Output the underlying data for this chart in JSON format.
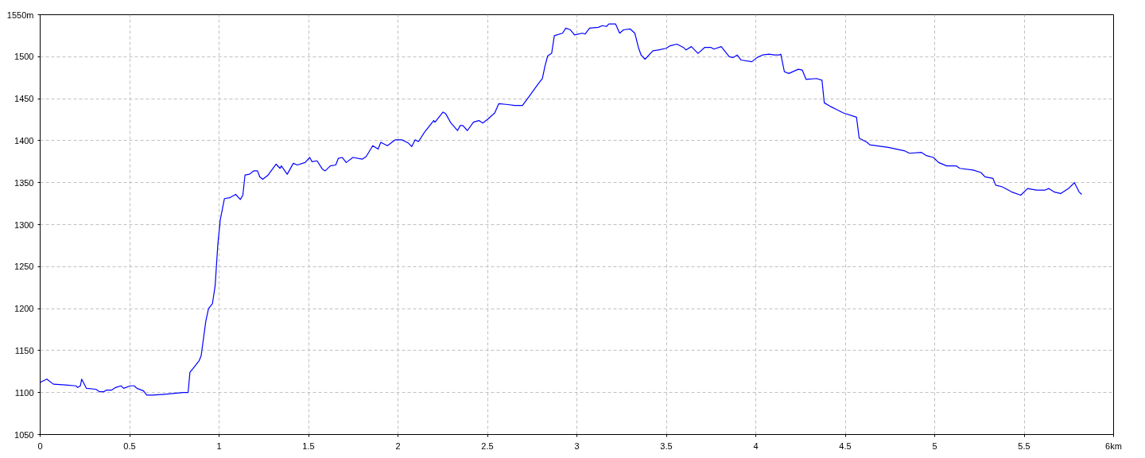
{
  "chart_data": {
    "type": "line",
    "x": [
      0.0,
      0.037,
      0.074,
      0.141,
      0.2,
      0.21,
      0.225,
      0.232,
      0.259,
      0.311,
      0.333,
      0.356,
      0.37,
      0.4,
      0.422,
      0.452,
      0.467,
      0.504,
      0.526,
      0.541,
      0.578,
      0.596,
      0.63,
      0.696,
      0.8,
      0.827,
      0.837,
      0.889,
      0.9,
      0.926,
      0.941,
      0.963,
      0.978,
      0.993,
      1.007,
      1.03,
      1.059,
      1.093,
      1.119,
      1.133,
      1.145,
      1.17,
      1.193,
      1.215,
      1.227,
      1.244,
      1.274,
      1.319,
      1.341,
      1.348,
      1.381,
      1.415,
      1.437,
      1.481,
      1.507,
      1.519,
      1.548,
      1.578,
      1.593,
      1.622,
      1.652,
      1.667,
      1.689,
      1.711,
      1.748,
      1.8,
      1.822,
      1.859,
      1.889,
      1.904,
      1.941,
      1.985,
      2.022,
      2.059,
      2.077,
      2.096,
      2.115,
      2.148,
      2.185,
      2.2,
      2.207,
      2.252,
      2.267,
      2.296,
      2.333,
      2.348,
      2.363,
      2.388,
      2.422,
      2.452,
      2.474,
      2.504,
      2.541,
      2.563,
      2.615,
      2.652,
      2.696,
      2.741,
      2.785,
      2.807,
      2.822,
      2.837,
      2.859,
      2.874,
      2.92,
      2.938,
      2.964,
      2.987,
      3.031,
      3.046,
      3.071,
      3.12,
      3.142,
      3.165,
      3.179,
      3.216,
      3.239,
      3.261,
      3.298,
      3.324,
      3.344,
      3.359,
      3.381,
      3.425,
      3.455,
      3.499,
      3.521,
      3.559,
      3.596,
      3.61,
      3.64,
      3.677,
      3.714,
      3.75,
      3.766,
      3.807,
      3.852,
      3.874,
      3.896,
      3.918,
      3.978,
      4.007,
      4.037,
      4.074,
      4.104,
      4.13,
      4.14,
      4.16,
      4.185,
      4.237,
      4.26,
      4.281,
      4.34,
      4.37,
      4.383,
      4.415,
      4.452,
      4.489,
      4.563,
      4.578,
      4.622,
      4.637,
      4.741,
      4.83,
      4.859,
      4.926,
      4.956,
      4.993,
      5.022,
      5.067,
      5.119,
      5.141,
      5.215,
      5.259,
      5.281,
      5.326,
      5.341,
      5.378,
      5.43,
      5.481,
      5.519,
      5.57,
      5.615,
      5.637,
      5.667,
      5.704,
      5.748,
      5.781,
      5.807,
      5.822
    ],
    "series": [
      {
        "color": "#0000ff",
        "values": [
          1112,
          1116,
          1110,
          1109,
          1108,
          1106,
          1108,
          1116,
          1105,
          1104,
          1101,
          1101,
          1103,
          1103,
          1106,
          1108,
          1105,
          1108,
          1108,
          1105,
          1102,
          1097,
          1097,
          1098,
          1100,
          1100,
          1124,
          1138,
          1144,
          1185,
          1200,
          1206,
          1227,
          1276,
          1306,
          1331,
          1332,
          1336,
          1330,
          1335,
          1359,
          1360,
          1364,
          1364,
          1357,
          1354,
          1359,
          1372,
          1367,
          1370,
          1360,
          1373,
          1371,
          1374,
          1380,
          1375,
          1376,
          1366,
          1364,
          1370,
          1371,
          1379,
          1380,
          1374,
          1380,
          1378,
          1381,
          1394,
          1390,
          1398,
          1394,
          1401,
          1401,
          1397,
          1393,
          1401,
          1399,
          1410,
          1420,
          1424,
          1422,
          1434,
          1432,
          1421,
          1412,
          1418,
          1418,
          1412,
          1422,
          1424,
          1421,
          1426,
          1433,
          1444,
          1443,
          1442,
          1442,
          1455,
          1468,
          1474,
          1489,
          1501,
          1504,
          1525,
          1528,
          1534,
          1532,
          1526,
          1528,
          1527,
          1534,
          1535,
          1537,
          1536,
          1539,
          1539,
          1528,
          1532,
          1533,
          1528,
          1511,
          1502,
          1497,
          1507,
          1508,
          1510,
          1513,
          1515,
          1511,
          1508,
          1512,
          1504,
          1511,
          1511,
          1509,
          1512,
          1500,
          1499,
          1502,
          1496,
          1494,
          1499,
          1502,
          1503,
          1502,
          1502,
          1503,
          1482,
          1480,
          1485,
          1484,
          1473,
          1474,
          1472,
          1445,
          1441,
          1437,
          1433,
          1428,
          1403,
          1398,
          1395,
          1392,
          1388,
          1385,
          1386,
          1382,
          1380,
          1374,
          1370,
          1370,
          1367,
          1365,
          1362,
          1357,
          1355,
          1347,
          1345,
          1339,
          1335,
          1343,
          1341,
          1341,
          1343,
          1339,
          1337,
          1343,
          1350,
          1339,
          1336
        ]
      }
    ],
    "xlim": [
      0,
      6
    ],
    "xticks": [
      0,
      0.5,
      1,
      1.5,
      2,
      2.5,
      3,
      3.5,
      4,
      4.5,
      5,
      5.5,
      {
        "value": 6,
        "label": "6km"
      }
    ],
    "ylim": [
      1050,
      1550
    ],
    "yticks": [
      1050,
      1100,
      1150,
      1200,
      1250,
      1300,
      1350,
      1400,
      1450,
      1500,
      {
        "value": 1550,
        "label": "1550m"
      }
    ],
    "grid": true,
    "line_style": "solid"
  }
}
